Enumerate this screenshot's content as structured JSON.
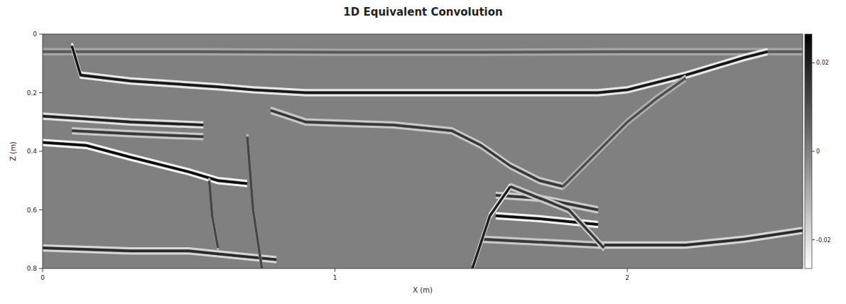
{
  "chart_data": {
    "type": "line",
    "title": "1D Equivalent Convolution",
    "x_label": "X (m)",
    "y_label": "Z (m)",
    "xlim": [
      0,
      2.6
    ],
    "ylim": [
      0,
      0.8
    ],
    "xticks": [
      0,
      1,
      2
    ],
    "yticks": [
      0,
      0.2,
      0.4,
      0.6,
      0.8
    ],
    "colorbar": {
      "range": [
        -0.0265,
        0.0265
      ],
      "ticks": [
        -0.02,
        0,
        0.02
      ]
    },
    "series": [
      {
        "x": [
          0,
          0.5,
          1.0,
          1.5,
          2.0,
          2.6
        ],
        "values": [
          0.06,
          0.06,
          0.062,
          0.062,
          0.06,
          0.06
        ],
        "amplitude": 0.008
      },
      {
        "x": [
          0.1,
          0.13,
          0.3,
          0.6,
          0.72,
          0.9,
          1.2,
          1.4,
          1.7,
          1.9,
          2.0,
          2.2,
          2.4,
          2.48
        ],
        "values": [
          0.04,
          0.14,
          0.16,
          0.18,
          0.19,
          0.2,
          0.2,
          0.2,
          0.2,
          0.2,
          0.19,
          0.14,
          0.08,
          0.06
        ],
        "amplitude": 0.022
      },
      {
        "x": [
          0.78,
          0.9,
          1.2,
          1.4,
          1.5,
          1.6,
          1.7,
          1.78
        ],
        "values": [
          0.26,
          0.3,
          0.31,
          0.33,
          0.38,
          0.45,
          0.5,
          0.52
        ],
        "amplitude": 0.015
      },
      {
        "x": [
          1.78,
          1.9,
          2.0,
          2.1,
          2.2
        ],
        "values": [
          0.52,
          0.4,
          0.3,
          0.22,
          0.15
        ],
        "amplitude": 0.01
      },
      {
        "x": [
          0,
          0.15,
          0.3,
          0.55
        ],
        "values": [
          0.28,
          0.29,
          0.3,
          0.31
        ],
        "amplitude": 0.02
      },
      {
        "x": [
          0.1,
          0.3,
          0.55
        ],
        "values": [
          0.33,
          0.34,
          0.35
        ],
        "amplitude": 0.015
      },
      {
        "x": [
          0,
          0.15,
          0.3,
          0.5,
          0.6,
          0.7
        ],
        "values": [
          0.37,
          0.38,
          0.42,
          0.47,
          0.5,
          0.51
        ],
        "amplitude": 0.024
      },
      {
        "x": [
          0,
          0.3,
          0.5,
          0.6,
          0.8
        ],
        "values": [
          0.73,
          0.74,
          0.74,
          0.75,
          0.77
        ],
        "amplitude": 0.018
      },
      {
        "x": [
          1.9,
          2.2,
          2.4,
          2.6
        ],
        "values": [
          0.72,
          0.72,
          0.7,
          0.67
        ],
        "amplitude": 0.018
      },
      {
        "x": [
          1.55,
          1.7,
          1.9
        ],
        "values": [
          0.55,
          0.56,
          0.6
        ],
        "amplitude": 0.016
      },
      {
        "x": [
          1.55,
          1.7,
          1.9
        ],
        "values": [
          0.62,
          0.63,
          0.65
        ],
        "amplitude": 0.024
      },
      {
        "x": [
          1.5,
          1.7,
          1.9
        ],
        "values": [
          0.7,
          0.71,
          0.72
        ],
        "amplitude": 0.015
      },
      {
        "x": [
          1.47,
          1.53,
          1.6
        ],
        "values": [
          0.8,
          0.62,
          0.52
        ],
        "amplitude": 0.02
      },
      {
        "x": [
          1.6,
          1.8,
          1.92
        ],
        "values": [
          0.52,
          0.6,
          0.73
        ],
        "amplitude": 0.015
      },
      {
        "x": [
          0.7,
          0.72,
          0.75
        ],
        "values": [
          0.35,
          0.6,
          0.8
        ],
        "amplitude": 0.012
      },
      {
        "x": [
          0.57,
          0.58,
          0.6
        ],
        "values": [
          0.5,
          0.62,
          0.73
        ],
        "amplitude": 0.012
      }
    ]
  }
}
